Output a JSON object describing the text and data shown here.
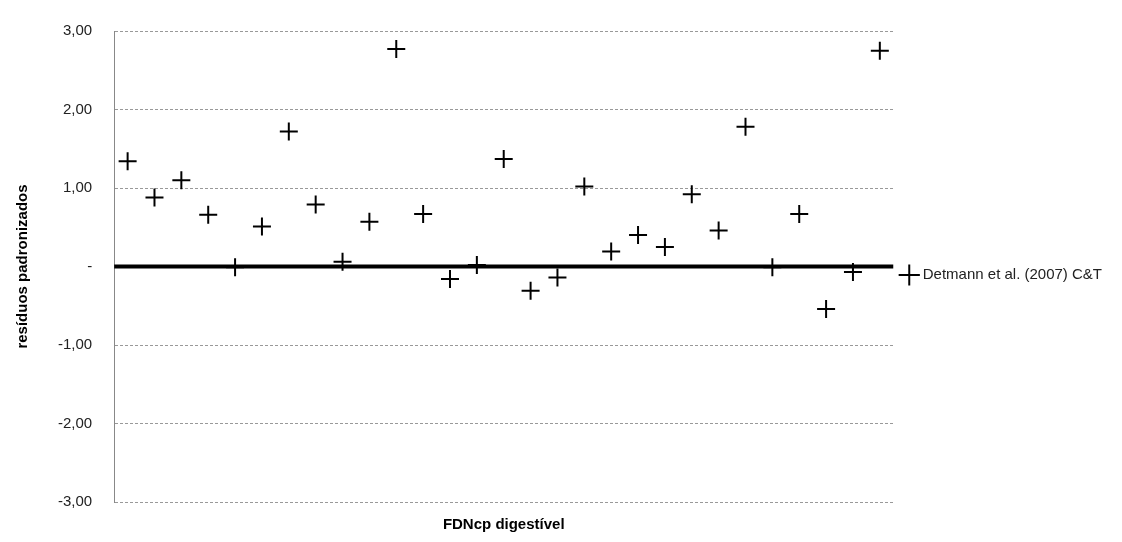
{
  "chart_data": {
    "type": "scatter",
    "xlabel": "FDNcp digestível",
    "ylabel": "resíduos padronizados",
    "categories": [
      null,
      null,
      null,
      null,
      null,
      null,
      null,
      null,
      null,
      null,
      null,
      null,
      null,
      null,
      null,
      null,
      null,
      null,
      null,
      null,
      null,
      null,
      null,
      null,
      null,
      null,
      null,
      null,
      null
    ],
    "series": [
      {
        "name": "Detmann et al. (2007) C&T",
        "color": "#000000",
        "values": [
          1.34,
          0.88,
          1.1,
          0.66,
          -0.01,
          0.51,
          1.72,
          0.79,
          0.06,
          0.57,
          2.77,
          0.67,
          -0.16,
          0.02,
          1.37,
          -0.31,
          -0.14,
          1.02,
          0.19,
          0.4,
          0.25,
          0.92,
          0.46,
          1.78,
          -0.01,
          0.67,
          -0.54,
          -0.07,
          2.75
        ]
      }
    ],
    "ylim": [
      -3,
      3
    ],
    "yticks": [
      {
        "value": -3,
        "label": "-3,00"
      },
      {
        "value": -2,
        "label": "-2,00"
      },
      {
        "value": -1,
        "label": "-1,00"
      },
      {
        "value": 0,
        "label": "-"
      },
      {
        "value": 1,
        "label": "1,00"
      },
      {
        "value": 2,
        "label": "2,00"
      },
      {
        "value": 3,
        "label": "3,00"
      }
    ],
    "grid": "y",
    "legend": "right",
    "marker": "cross",
    "tick_labels": "y"
  }
}
